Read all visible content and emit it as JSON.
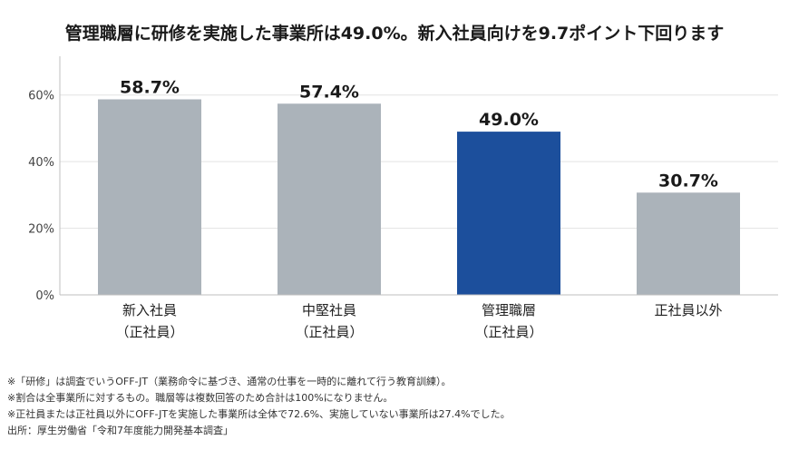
{
  "chart_data": {
    "type": "bar",
    "title": "管理職層に研修を実施した事業所は49.0%。新入社員向けを9.7ポイント下回ります",
    "categories": [
      [
        "新入社員",
        "（正社員）"
      ],
      [
        "中堅社員",
        "（正社員）"
      ],
      [
        "管理職層",
        "（正社員）"
      ],
      [
        "正社員以外"
      ]
    ],
    "values": [
      58.7,
      57.4,
      49.0,
      30.7
    ],
    "value_labels": [
      "58.7%",
      "57.4%",
      "49.0%",
      "30.7%"
    ],
    "highlight_index": 2,
    "ylim": [
      0,
      70
    ],
    "yticks": [
      0,
      20,
      40,
      60
    ],
    "ytick_labels": [
      "0%",
      "20%",
      "40%",
      "60%"
    ],
    "grid": true,
    "colors": {
      "bar": "#abb3ba",
      "highlight": "#1c4f9c",
      "grid": "#e3e3e3",
      "axis": "#bfbfbf"
    }
  },
  "notes": [
    "※「研修」は調査でいうOFF-JT（業務命令に基づき、通常の仕事を一時的に離れて行う教育訓練）。",
    "※割合は全事業所に対するもの。職層等は複数回答のため合計は100%になりません。",
    "※正社員または正社員以外にOFF-JTを実施した事業所は全体で72.6%、実施していない事業所は27.4%でした。",
    "出所：厚生労働省「令和7年度能力開発基本調査」"
  ]
}
